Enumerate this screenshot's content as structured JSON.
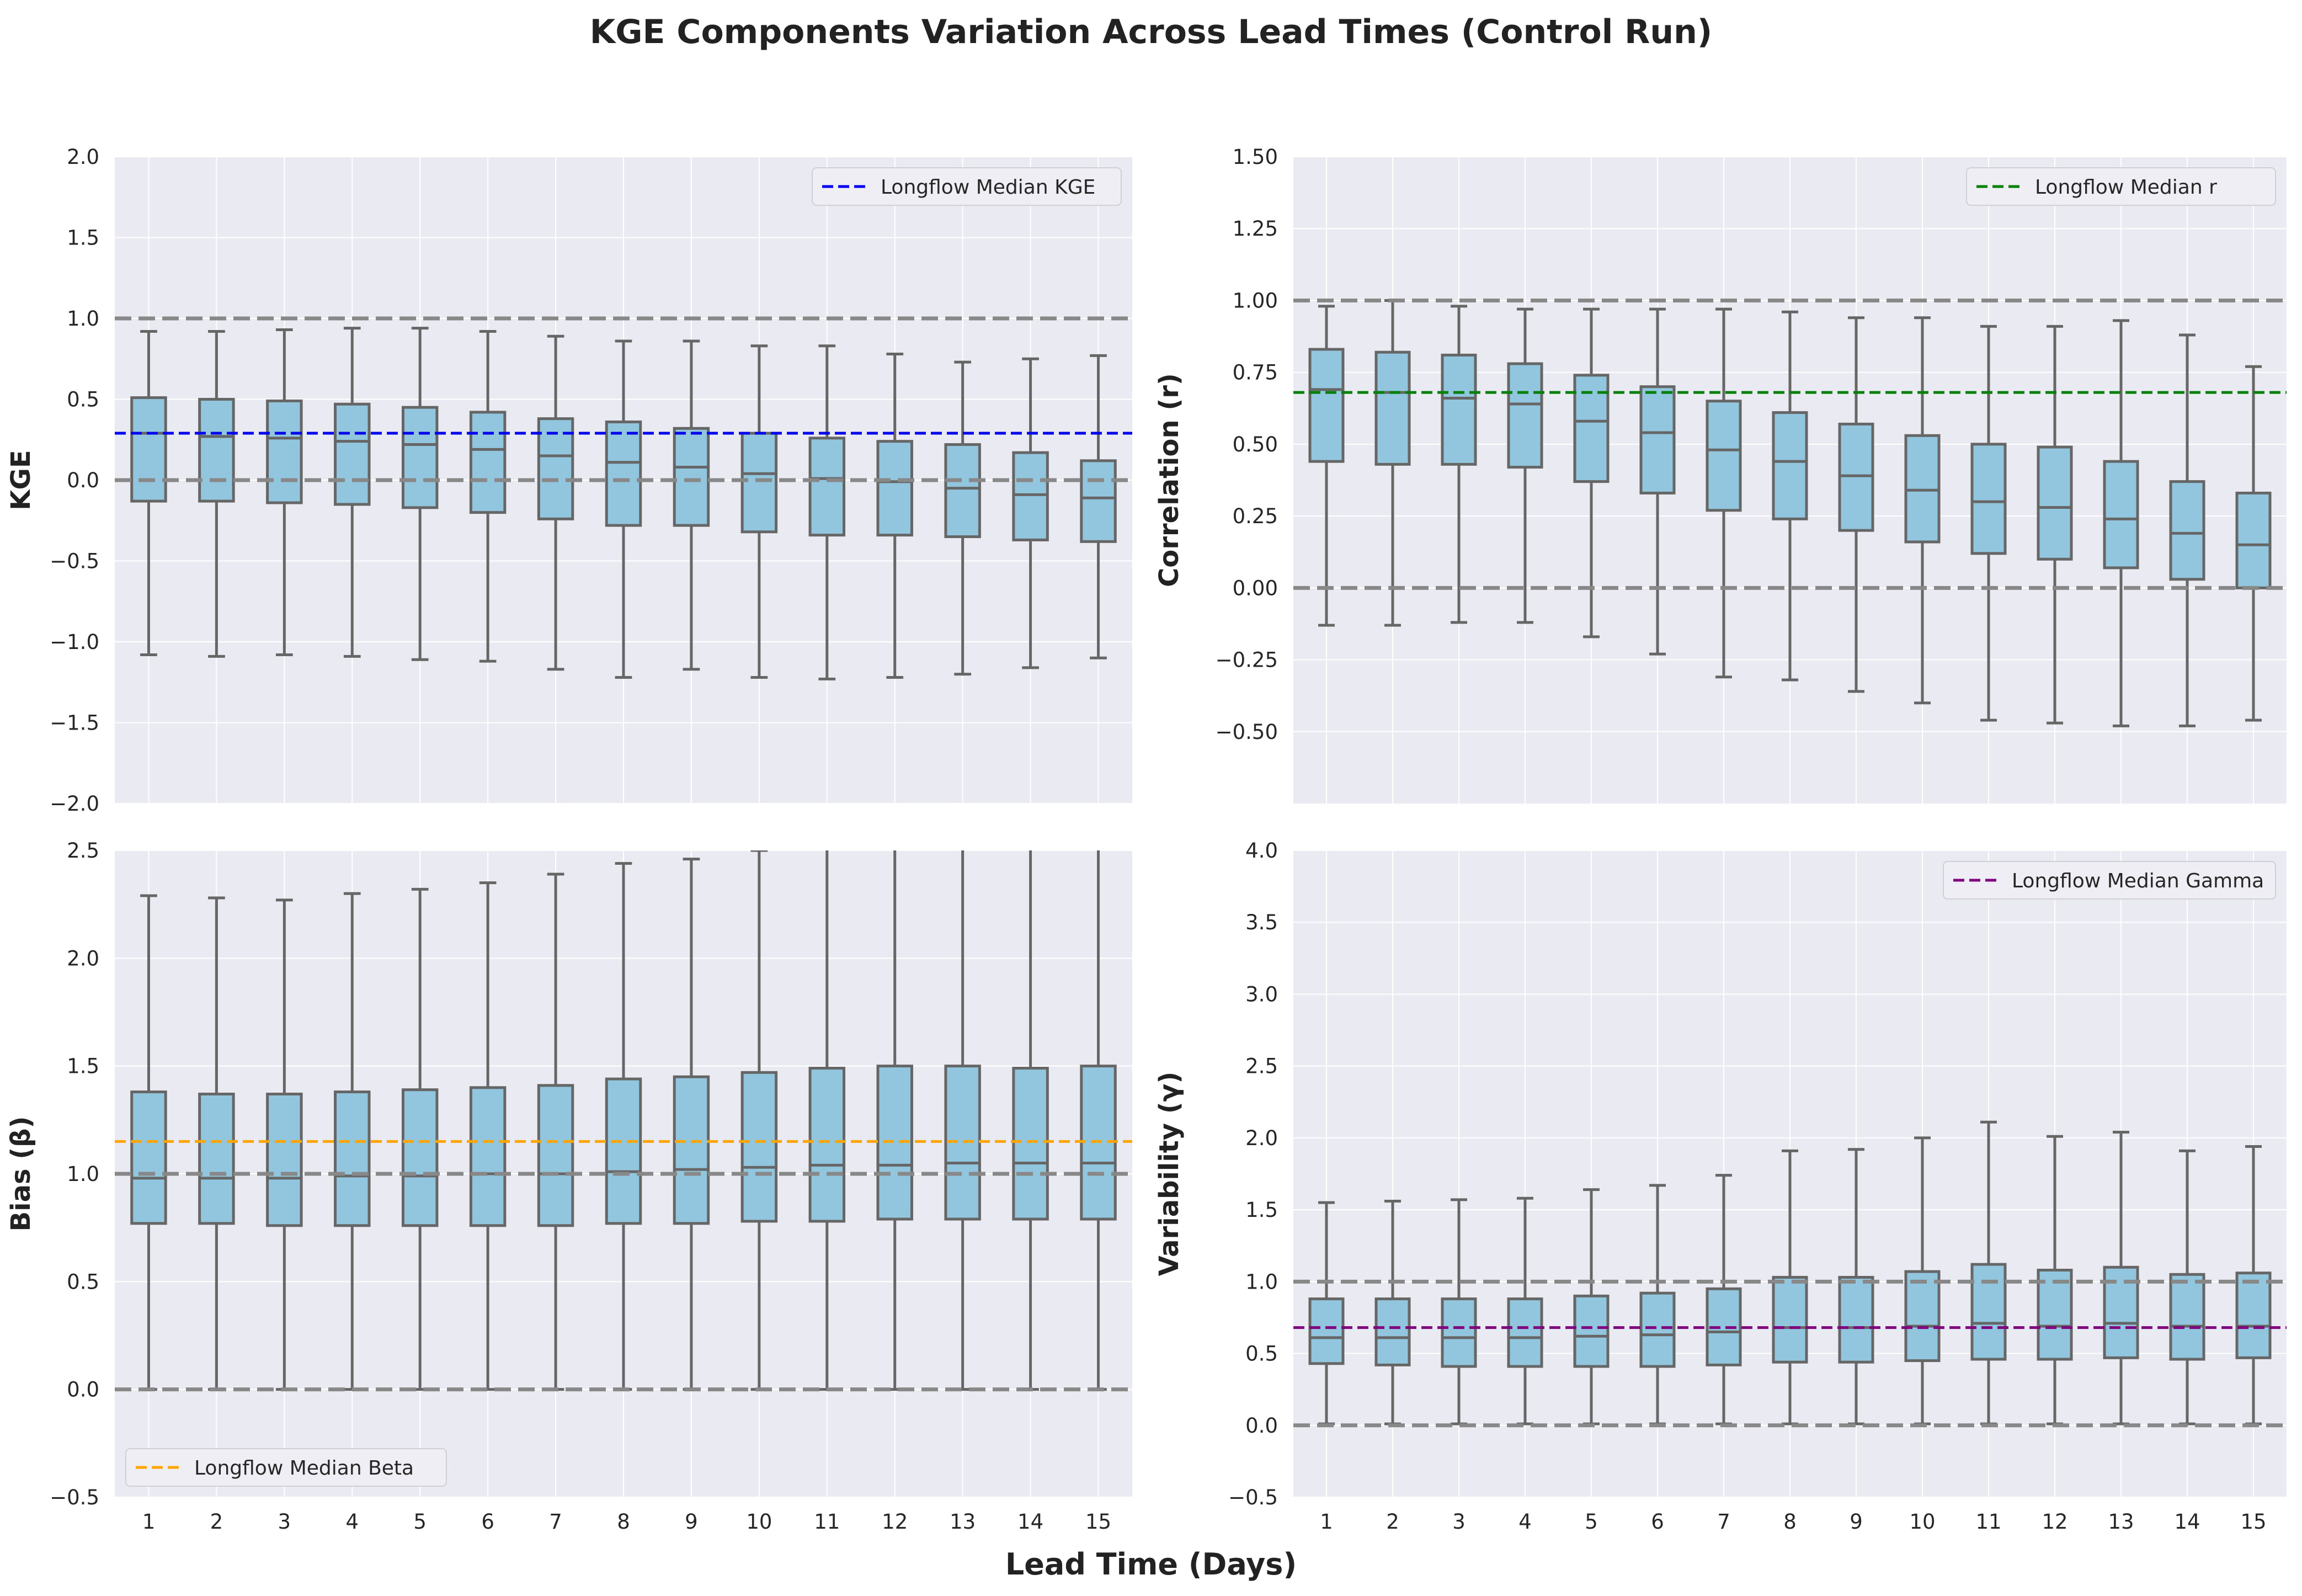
{
  "figure": {
    "title": "KGE Components Variation Across Lead Times (Control Run)",
    "xlabel": "Lead Time (Days)"
  },
  "colors": {
    "panel_bg": "#eaeaf2",
    "grid": "#ffffff",
    "box_fill": "#92c6de",
    "box_edge": "#666666",
    "reference_line": "#888888"
  },
  "chart_data": [
    {
      "type": "box",
      "ylabel": "KGE",
      "ylim": [
        -2.0,
        2.0
      ],
      "yticks": [
        -2.0,
        -1.5,
        -1.0,
        -0.5,
        0.0,
        0.5,
        1.0,
        1.5,
        2.0
      ],
      "ytick_labels": [
        "−2.0",
        "−1.5",
        "−1.0",
        "−0.5",
        "0.0",
        "0.5",
        "1.0",
        "1.5",
        "2.0"
      ],
      "categories": [
        "1",
        "2",
        "3",
        "4",
        "5",
        "6",
        "7",
        "8",
        "9",
        "10",
        "11",
        "12",
        "13",
        "14",
        "15"
      ],
      "show_x_ticks": false,
      "grid": true,
      "boxes": [
        {
          "whislo": -1.08,
          "q1": -0.13,
          "med": 0.29,
          "q3": 0.51,
          "whishi": 0.92
        },
        {
          "whislo": -1.09,
          "q1": -0.13,
          "med": 0.27,
          "q3": 0.5,
          "whishi": 0.92
        },
        {
          "whislo": -1.08,
          "q1": -0.14,
          "med": 0.26,
          "q3": 0.49,
          "whishi": 0.93
        },
        {
          "whislo": -1.09,
          "q1": -0.15,
          "med": 0.24,
          "q3": 0.47,
          "whishi": 0.94
        },
        {
          "whislo": -1.11,
          "q1": -0.17,
          "med": 0.22,
          "q3": 0.45,
          "whishi": 0.94
        },
        {
          "whislo": -1.12,
          "q1": -0.2,
          "med": 0.19,
          "q3": 0.42,
          "whishi": 0.92
        },
        {
          "whislo": -1.17,
          "q1": -0.24,
          "med": 0.15,
          "q3": 0.38,
          "whishi": 0.89
        },
        {
          "whislo": -1.22,
          "q1": -0.28,
          "med": 0.11,
          "q3": 0.36,
          "whishi": 0.86
        },
        {
          "whislo": -1.17,
          "q1": -0.28,
          "med": 0.08,
          "q3": 0.32,
          "whishi": 0.86
        },
        {
          "whislo": -1.22,
          "q1": -0.32,
          "med": 0.04,
          "q3": 0.29,
          "whishi": 0.83
        },
        {
          "whislo": -1.23,
          "q1": -0.34,
          "med": 0.01,
          "q3": 0.26,
          "whishi": 0.83
        },
        {
          "whislo": -1.22,
          "q1": -0.34,
          "med": -0.01,
          "q3": 0.24,
          "whishi": 0.78
        },
        {
          "whislo": -1.2,
          "q1": -0.35,
          "med": -0.05,
          "q3": 0.22,
          "whishi": 0.73
        },
        {
          "whislo": -1.16,
          "q1": -0.37,
          "med": -0.09,
          "q3": 0.17,
          "whishi": 0.75
        },
        {
          "whislo": -1.1,
          "q1": -0.38,
          "med": -0.11,
          "q3": 0.12,
          "whishi": 0.77
        }
      ],
      "ref_lines": [
        1.0,
        0.0
      ],
      "median_line": {
        "value": 0.29,
        "color": "#0000ee",
        "label": "Longflow Median KGE"
      },
      "legend_loc": "upper-right"
    },
    {
      "type": "box",
      "ylabel": "Correlation (r)",
      "ylim": [
        -0.75,
        1.5
      ],
      "yticks": [
        -0.5,
        -0.25,
        0.0,
        0.25,
        0.5,
        0.75,
        1.0,
        1.25,
        1.5
      ],
      "ytick_labels": [
        "−0.50",
        "−0.25",
        "0.00",
        "0.25",
        "0.50",
        "0.75",
        "1.00",
        "1.25",
        "1.50"
      ],
      "categories": [
        "1",
        "2",
        "3",
        "4",
        "5",
        "6",
        "7",
        "8",
        "9",
        "10",
        "11",
        "12",
        "13",
        "14",
        "15"
      ],
      "show_x_ticks": false,
      "grid": true,
      "boxes": [
        {
          "whislo": -0.13,
          "q1": 0.44,
          "med": 0.69,
          "q3": 0.83,
          "whishi": 0.98
        },
        {
          "whislo": -0.13,
          "q1": 0.43,
          "med": 0.68,
          "q3": 0.82,
          "whishi": 1.0
        },
        {
          "whislo": -0.12,
          "q1": 0.43,
          "med": 0.66,
          "q3": 0.81,
          "whishi": 0.98
        },
        {
          "whislo": -0.12,
          "q1": 0.42,
          "med": 0.64,
          "q3": 0.78,
          "whishi": 0.97
        },
        {
          "whislo": -0.17,
          "q1": 0.37,
          "med": 0.58,
          "q3": 0.74,
          "whishi": 0.97
        },
        {
          "whislo": -0.23,
          "q1": 0.33,
          "med": 0.54,
          "q3": 0.7,
          "whishi": 0.97
        },
        {
          "whislo": -0.31,
          "q1": 0.27,
          "med": 0.48,
          "q3": 0.65,
          "whishi": 0.97
        },
        {
          "whislo": -0.32,
          "q1": 0.24,
          "med": 0.44,
          "q3": 0.61,
          "whishi": 0.96
        },
        {
          "whislo": -0.36,
          "q1": 0.2,
          "med": 0.39,
          "q3": 0.57,
          "whishi": 0.94
        },
        {
          "whislo": -0.4,
          "q1": 0.16,
          "med": 0.34,
          "q3": 0.53,
          "whishi": 0.94
        },
        {
          "whislo": -0.46,
          "q1": 0.12,
          "med": 0.3,
          "q3": 0.5,
          "whishi": 0.91
        },
        {
          "whislo": -0.47,
          "q1": 0.1,
          "med": 0.28,
          "q3": 0.49,
          "whishi": 0.91
        },
        {
          "whislo": -0.48,
          "q1": 0.07,
          "med": 0.24,
          "q3": 0.44,
          "whishi": 0.93
        },
        {
          "whislo": -0.48,
          "q1": 0.03,
          "med": 0.19,
          "q3": 0.37,
          "whishi": 0.88
        },
        {
          "whislo": -0.46,
          "q1": 0.0,
          "med": 0.15,
          "q3": 0.33,
          "whishi": 0.77
        }
      ],
      "ref_lines": [
        1.0,
        0.0
      ],
      "median_line": {
        "value": 0.68,
        "color": "#008000",
        "label": "Longflow Median r"
      },
      "legend_loc": "upper-right"
    },
    {
      "type": "box",
      "ylabel": "Bias (β)",
      "ylim": [
        -0.5,
        2.5
      ],
      "yticks": [
        -0.5,
        0.0,
        0.5,
        1.0,
        1.5,
        2.0,
        2.5
      ],
      "ytick_labels": [
        "−0.5",
        "0.0",
        "0.5",
        "1.0",
        "1.5",
        "2.0",
        "2.5"
      ],
      "categories": [
        "1",
        "2",
        "3",
        "4",
        "5",
        "6",
        "7",
        "8",
        "9",
        "10",
        "11",
        "12",
        "13",
        "14",
        "15"
      ],
      "show_x_ticks": true,
      "grid": true,
      "boxes": [
        {
          "whislo": 0.0,
          "q1": 0.77,
          "med": 0.98,
          "q3": 1.38,
          "whishi": 2.29
        },
        {
          "whislo": 0.0,
          "q1": 0.77,
          "med": 0.98,
          "q3": 1.37,
          "whishi": 2.28
        },
        {
          "whislo": 0.0,
          "q1": 0.76,
          "med": 0.98,
          "q3": 1.37,
          "whishi": 2.27
        },
        {
          "whislo": 0.0,
          "q1": 0.76,
          "med": 0.99,
          "q3": 1.38,
          "whishi": 2.3
        },
        {
          "whislo": 0.0,
          "q1": 0.76,
          "med": 0.99,
          "q3": 1.39,
          "whishi": 2.32
        },
        {
          "whislo": 0.0,
          "q1": 0.76,
          "med": 1.0,
          "q3": 1.4,
          "whishi": 2.35
        },
        {
          "whislo": 0.0,
          "q1": 0.76,
          "med": 1.0,
          "q3": 1.41,
          "whishi": 2.39
        },
        {
          "whislo": 0.0,
          "q1": 0.77,
          "med": 1.01,
          "q3": 1.44,
          "whishi": 2.44
        },
        {
          "whislo": 0.0,
          "q1": 0.77,
          "med": 1.02,
          "q3": 1.45,
          "whishi": 2.46
        },
        {
          "whislo": 0.0,
          "q1": 0.78,
          "med": 1.03,
          "q3": 1.47,
          "whishi": 2.5
        },
        {
          "whislo": 0.0,
          "q1": 0.78,
          "med": 1.04,
          "q3": 1.49,
          "whishi": 2.55
        },
        {
          "whislo": 0.0,
          "q1": 0.79,
          "med": 1.04,
          "q3": 1.5,
          "whishi": 2.56
        },
        {
          "whislo": 0.0,
          "q1": 0.79,
          "med": 1.05,
          "q3": 1.5,
          "whishi": 2.56
        },
        {
          "whislo": 0.0,
          "q1": 0.79,
          "med": 1.05,
          "q3": 1.49,
          "whishi": 2.55
        },
        {
          "whislo": 0.0,
          "q1": 0.79,
          "med": 1.05,
          "q3": 1.5,
          "whishi": 2.56
        }
      ],
      "ref_lines": [
        1.0,
        0.0
      ],
      "median_line": {
        "value": 1.15,
        "color": "#ffa500",
        "label": "Longflow Median Beta"
      },
      "legend_loc": "lower-left"
    },
    {
      "type": "box",
      "ylabel": "Variability (γ)",
      "ylim": [
        -0.5,
        4.0
      ],
      "yticks": [
        -0.5,
        0.0,
        0.5,
        1.0,
        1.5,
        2.0,
        2.5,
        3.0,
        3.5,
        4.0
      ],
      "ytick_labels": [
        "−0.5",
        "0.0",
        "0.5",
        "1.0",
        "1.5",
        "2.0",
        "2.5",
        "3.0",
        "3.5",
        "4.0"
      ],
      "categories": [
        "1",
        "2",
        "3",
        "4",
        "5",
        "6",
        "7",
        "8",
        "9",
        "10",
        "11",
        "12",
        "13",
        "14",
        "15"
      ],
      "show_x_ticks": true,
      "grid": true,
      "boxes": [
        {
          "whislo": 0.01,
          "q1": 0.43,
          "med": 0.61,
          "q3": 0.88,
          "whishi": 1.55
        },
        {
          "whislo": 0.01,
          "q1": 0.42,
          "med": 0.61,
          "q3": 0.88,
          "whishi": 1.56
        },
        {
          "whislo": 0.01,
          "q1": 0.41,
          "med": 0.61,
          "q3": 0.88,
          "whishi": 1.57
        },
        {
          "whislo": 0.01,
          "q1": 0.41,
          "med": 0.61,
          "q3": 0.88,
          "whishi": 1.58
        },
        {
          "whislo": 0.01,
          "q1": 0.41,
          "med": 0.62,
          "q3": 0.9,
          "whishi": 1.64
        },
        {
          "whislo": 0.01,
          "q1": 0.41,
          "med": 0.63,
          "q3": 0.92,
          "whishi": 1.67
        },
        {
          "whislo": 0.01,
          "q1": 0.42,
          "med": 0.65,
          "q3": 0.95,
          "whishi": 1.74
        },
        {
          "whislo": 0.01,
          "q1": 0.44,
          "med": 0.68,
          "q3": 1.03,
          "whishi": 1.91
        },
        {
          "whislo": 0.01,
          "q1": 0.44,
          "med": 0.68,
          "q3": 1.03,
          "whishi": 1.92
        },
        {
          "whislo": 0.01,
          "q1": 0.45,
          "med": 0.69,
          "q3": 1.07,
          "whishi": 2.0
        },
        {
          "whislo": 0.01,
          "q1": 0.46,
          "med": 0.71,
          "q3": 1.12,
          "whishi": 2.11
        },
        {
          "whislo": 0.01,
          "q1": 0.46,
          "med": 0.69,
          "q3": 1.08,
          "whishi": 2.01
        },
        {
          "whislo": 0.01,
          "q1": 0.47,
          "med": 0.71,
          "q3": 1.1,
          "whishi": 2.04
        },
        {
          "whislo": 0.01,
          "q1": 0.46,
          "med": 0.69,
          "q3": 1.05,
          "whishi": 1.91
        },
        {
          "whislo": 0.01,
          "q1": 0.47,
          "med": 0.69,
          "q3": 1.06,
          "whishi": 1.94
        }
      ],
      "ref_lines": [
        1.0,
        0.0
      ],
      "median_line": {
        "value": 0.68,
        "color": "#800080",
        "label": "Longflow Median Gamma"
      },
      "legend_loc": "upper-right"
    }
  ]
}
